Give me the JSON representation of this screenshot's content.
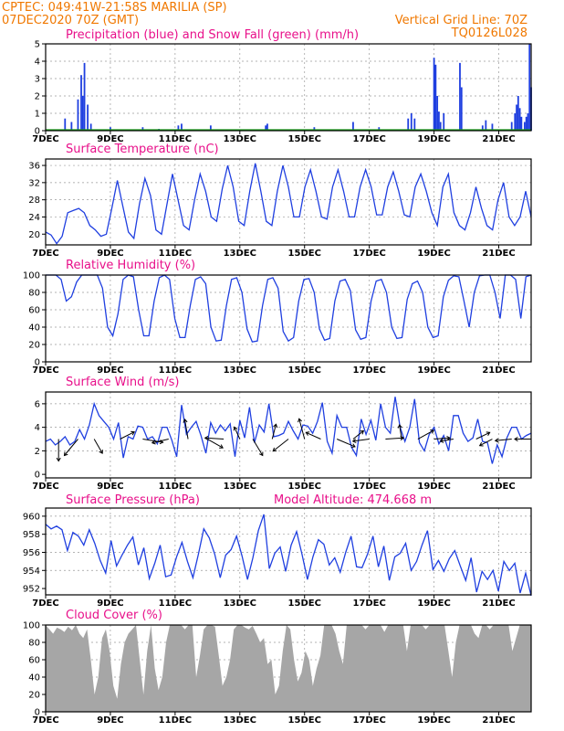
{
  "header": {
    "line1_left": "CPTEC:   049:41W-21:58S  MARILIA (SP)",
    "line2_left": "07DEC2020 70Z (GMT)",
    "line2_right": "Vertical Grid Line: 70Z",
    "line3_right": "TQ0126L028"
  },
  "colors": {
    "accent": "#e8108a",
    "header": "#f07800",
    "line": "#1f3fe0",
    "precip": "#1f3fe0",
    "snow": "#1aa01a",
    "cloud": "#a6a6a6"
  },
  "x_axis": {
    "start_label": "7DEC",
    "ticks": [
      "7DEC",
      "9DEC",
      "11DEC",
      "13DEC",
      "15DEC",
      "17DEC",
      "19DEC",
      "21DEC"
    ],
    "days": 15
  },
  "chart_data": [
    {
      "type": "bar",
      "title": "Precipitation (blue) and Snow Fall (green) (mm/h)",
      "ylim": [
        0,
        5
      ],
      "yticks": [
        0,
        1,
        2,
        3,
        4,
        5
      ],
      "series": [
        {
          "name": "Precipitation",
          "values": [
            [
              0.6,
              0.7
            ],
            [
              0.8,
              0.5
            ],
            [
              1.0,
              1.8
            ],
            [
              1.1,
              3.2
            ],
            [
              1.15,
              2.0
            ],
            [
              1.2,
              3.9
            ],
            [
              1.3,
              1.5
            ],
            [
              1.4,
              0.4
            ],
            [
              2.0,
              0.2
            ],
            [
              3.0,
              0.2
            ],
            [
              3.5,
              0.1
            ],
            [
              4.1,
              0.3
            ],
            [
              4.2,
              0.4
            ],
            [
              5.1,
              0.3
            ],
            [
              6.8,
              0.3
            ],
            [
              6.85,
              0.4
            ],
            [
              8.3,
              0.2
            ],
            [
              9.5,
              0.5
            ],
            [
              10.3,
              0.2
            ],
            [
              11.2,
              0.7
            ],
            [
              11.3,
              1.0
            ],
            [
              11.4,
              0.7
            ],
            [
              12.0,
              4.2
            ],
            [
              12.05,
              3.8
            ],
            [
              12.1,
              2.0
            ],
            [
              12.15,
              1.1
            ],
            [
              12.2,
              0.5
            ],
            [
              12.3,
              1.0
            ],
            [
              12.8,
              3.9
            ],
            [
              12.85,
              2.5
            ],
            [
              13.5,
              0.3
            ],
            [
              13.6,
              0.6
            ],
            [
              13.8,
              0.4
            ],
            [
              14.4,
              0.5
            ],
            [
              14.5,
              1.0
            ],
            [
              14.55,
              1.5
            ],
            [
              14.6,
              2.0
            ],
            [
              14.65,
              1.3
            ],
            [
              14.7,
              0.8
            ],
            [
              14.8,
              0.5
            ],
            [
              14.85,
              0.8
            ],
            [
              14.9,
              1.0
            ],
            [
              14.95,
              5.0
            ],
            [
              15.0,
              2.5
            ]
          ]
        },
        {
          "name": "Snow Fall",
          "values": [
            [
              12.0,
              0.1
            ],
            [
              12.8,
              0.1
            ],
            [
              14.5,
              0.1
            ]
          ]
        }
      ]
    },
    {
      "type": "line",
      "title": "Surface Temperature (nC)",
      "ylim": [
        17.5,
        37.5
      ],
      "yticks": [
        20,
        24,
        28,
        32,
        36
      ],
      "series": [
        {
          "name": "Temperature",
          "values": [
            20.5,
            19.8,
            17.8,
            19.5,
            25.0,
            25.5,
            26.0,
            25.0,
            22.0,
            21.0,
            19.5,
            20.0,
            26.0,
            32.5,
            26.5,
            20.5,
            19.0,
            27.0,
            33.0,
            29.0,
            21.0,
            20.0,
            27.0,
            34.0,
            28.0,
            22.0,
            21.0,
            28.0,
            34.0,
            30.0,
            24.0,
            23.0,
            30.5,
            36.0,
            31.0,
            23.0,
            22.0,
            30.0,
            36.5,
            30.0,
            23.0,
            22.0,
            30.0,
            36.0,
            31.0,
            24.0,
            24.0,
            31.0,
            35.0,
            30.0,
            24.0,
            23.5,
            31.0,
            35.0,
            30.0,
            24.0,
            24.0,
            31.0,
            35.0,
            31.0,
            24.5,
            24.5,
            31.0,
            34.5,
            30.0,
            24.5,
            24.0,
            31.0,
            34.0,
            30.0,
            25.0,
            22.0,
            31.0,
            34.0,
            25.0,
            22.0,
            21.0,
            25.0,
            31.0,
            26.0,
            22.0,
            21.0,
            28.0,
            32.0,
            24.0,
            22.0,
            24.0,
            30.0,
            24.0
          ]
        }
      ]
    },
    {
      "type": "line",
      "title": "Relative Humidity (%)",
      "ylim": [
        0,
        100
      ],
      "yticks": [
        0,
        20,
        40,
        60,
        80,
        100
      ],
      "series": [
        {
          "name": "Relative Humidity",
          "values": [
            100,
            100,
            100,
            95,
            70,
            75,
            92,
            100,
            100,
            100,
            100,
            85,
            40,
            30,
            55,
            95,
            100,
            98,
            60,
            30,
            30,
            70,
            97,
            100,
            95,
            50,
            28,
            28,
            65,
            95,
            98,
            90,
            40,
            24,
            25,
            65,
            95,
            97,
            80,
            38,
            23,
            24,
            65,
            95,
            97,
            85,
            35,
            24,
            28,
            70,
            95,
            96,
            80,
            38,
            25,
            27,
            70,
            93,
            95,
            82,
            37,
            26,
            28,
            70,
            93,
            95,
            80,
            40,
            27,
            28,
            72,
            90,
            93,
            80,
            40,
            28,
            30,
            75,
            94,
            99,
            98,
            70,
            40,
            80,
            99,
            100,
            100,
            80,
            50,
            100,
            100,
            95,
            50,
            98,
            100
          ]
        }
      ]
    },
    {
      "type": "line",
      "title": "Surface Wind (m/s)",
      "ylim": [
        -0.3,
        7.0
      ],
      "yticks": [
        0,
        2,
        4,
        6
      ],
      "series": [
        {
          "name": "Wind Speed",
          "values": [
            2.8,
            3.0,
            2.5,
            2.8,
            3.2,
            2.5,
            2.8,
            3.8,
            3.0,
            4.2,
            6.0,
            5.0,
            4.5,
            4.0,
            3.0,
            4.4,
            1.4,
            3.2,
            3.0,
            4.1,
            4.0,
            3.0,
            3.2,
            2.6,
            4.0,
            4.0,
            2.9,
            1.5,
            5.9,
            3.4,
            4.0,
            4.5,
            3.3,
            1.8,
            4.4,
            3.5,
            4.2,
            3.7,
            4.3,
            1.5,
            4.6,
            3.1,
            5.7,
            2.7,
            4.2,
            3.6,
            6.0,
            3.2,
            3.3,
            3.5,
            4.5,
            3.7,
            3.0,
            4.2,
            4.1,
            3.5,
            4.5,
            6.1,
            2.8,
            1.8,
            5.0,
            4.0,
            4.0,
            2.3,
            1.6,
            4.7,
            3.4,
            4.6,
            2.9,
            6.0,
            4.0,
            3.5,
            6.6,
            4.0,
            2.8,
            4.0,
            6.4,
            2.7,
            2.0,
            3.4,
            4.0,
            2.6,
            3.3,
            2.0,
            5.0,
            5.0,
            3.5,
            2.8,
            3.1,
            4.7,
            2.8,
            2.7,
            0.9,
            2.5,
            1.5,
            3.1,
            4.0,
            4.0,
            3.0,
            3.3,
            3.5
          ]
        }
      ],
      "arrows": [
        [
          0.4,
          0.0,
          -4.0
        ],
        [
          1.0,
          -2.5,
          -3.0
        ],
        [
          1.5,
          1.5,
          -2.6
        ],
        [
          2.3,
          2.6,
          1.3
        ],
        [
          3.0,
          3.7,
          -0.6
        ],
        [
          3.8,
          -3.0,
          -0.7
        ],
        [
          4.4,
          -0.6,
          3.6
        ],
        [
          5.0,
          2.8,
          -1.6
        ],
        [
          5.5,
          -3.4,
          0.2
        ],
        [
          6.0,
          -1.0,
          2.2
        ],
        [
          6.4,
          1.8,
          -3.0
        ],
        [
          7.0,
          0.7,
          2.7
        ],
        [
          7.5,
          -2.8,
          -2.2
        ],
        [
          8.0,
          -1.0,
          3.7
        ],
        [
          8.5,
          -2.7,
          1.2
        ],
        [
          9.0,
          3.3,
          -1.4
        ],
        [
          9.5,
          1.9,
          1.5
        ],
        [
          10.0,
          -3.0,
          -0.4
        ],
        [
          10.5,
          3.3,
          0.2
        ],
        [
          11.0,
          -0.4,
          2.6
        ],
        [
          11.5,
          2.9,
          1.6
        ],
        [
          12.0,
          2.9,
          0.2
        ],
        [
          12.6,
          -2.4,
          -0.4
        ],
        [
          13.3,
          2.5,
          1.2
        ],
        [
          13.8,
          -2.3,
          -1.2
        ],
        [
          14.4,
          -3.0,
          -0.3
        ],
        [
          15.0,
          -3.0,
          0.0
        ]
      ]
    },
    {
      "type": "line",
      "title": "Surface Pressure (hPa)",
      "subtitle": "Model Altitude: 474.668 m",
      "ylim": [
        951.3,
        960.9
      ],
      "yticks": [
        952,
        954,
        956,
        958,
        960
      ],
      "series": [
        {
          "name": "Pressure",
          "values": [
            959.1,
            958.6,
            958.9,
            958.5,
            956.2,
            958.2,
            957.8,
            956.8,
            958.5,
            957.0,
            955.1,
            953.7,
            957.3,
            954.5,
            955.7,
            956.8,
            957.7,
            954.6,
            956.5,
            953.1,
            954.8,
            956.8,
            953.3,
            953.5,
            955.5,
            957.1,
            955.0,
            953.2,
            955.8,
            958.6,
            957.6,
            955.8,
            953.2,
            955.7,
            956.3,
            957.8,
            955.6,
            953.0,
            955.4,
            958.4,
            960.2,
            954.2,
            955.9,
            956.6,
            953.9,
            956.8,
            958.3,
            955.8,
            953.0,
            955.5,
            957.4,
            956.9,
            954.6,
            955.4,
            953.8,
            956.0,
            957.8,
            954.4,
            954.3,
            955.8,
            957.8,
            954.4,
            956.7,
            952.9,
            955.5,
            955.9,
            957.0,
            954.0,
            955.0,
            956.8,
            958.4,
            954.1,
            955.1,
            953.9,
            955.3,
            956.2,
            954.5,
            952.9,
            955.4,
            951.6,
            953.9,
            953.0,
            954.0,
            951.7,
            955.0,
            954.0,
            954.8,
            951.5,
            953.7,
            951.2
          ]
        }
      ]
    },
    {
      "type": "area",
      "title": "Cloud Cover (%)",
      "ylim": [
        0,
        100
      ],
      "yticks": [
        0,
        20,
        40,
        60,
        80,
        100
      ],
      "series": [
        {
          "name": "Cloud Cover",
          "values": [
            100,
            95,
            90,
            97,
            95,
            92,
            98,
            94,
            100,
            90,
            85,
            95,
            60,
            20,
            40,
            85,
            95,
            70,
            30,
            15,
            55,
            80,
            90,
            95,
            100,
            60,
            20,
            70,
            100,
            50,
            25,
            40,
            80,
            100,
            100,
            100,
            100,
            95,
            100,
            100,
            40,
            65,
            95,
            100,
            100,
            98,
            65,
            30,
            40,
            60,
            95,
            100,
            100,
            97,
            95,
            99,
            90,
            80,
            85,
            55,
            60,
            20,
            30,
            70,
            100,
            95,
            60,
            35,
            45,
            70,
            60,
            30,
            50,
            65,
            100,
            100,
            100,
            90,
            70,
            55,
            100,
            100,
            100,
            100,
            100,
            95,
            100,
            100,
            100,
            100,
            92,
            100,
            100,
            100,
            100,
            100,
            70,
            100,
            100,
            100,
            100,
            95,
            100,
            100,
            100,
            100,
            100,
            70,
            40,
            80,
            100,
            100,
            100,
            100,
            90,
            85,
            100,
            100,
            95,
            100,
            100,
            100,
            100,
            100,
            70,
            85,
            100,
            100,
            100,
            100
          ]
        }
      ]
    }
  ]
}
